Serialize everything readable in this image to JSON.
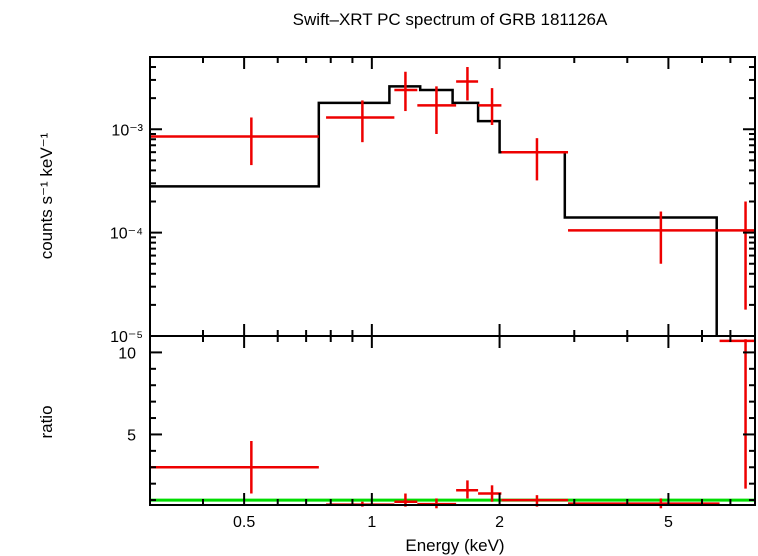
{
  "chart_data": [
    {
      "type": "line",
      "title": "Swift–XRT PC spectrum of GRB 181126A",
      "xlabel": "",
      "ylabel": "counts s⁻¹ keV⁻¹",
      "x_scale": "log",
      "y_scale": "log",
      "xlim": [
        0.3,
        8.0
      ],
      "ylim": [
        1e-05,
        0.005
      ],
      "y_tick_labels": [
        "10⁻³",
        "10⁻⁴",
        "10⁻⁵"
      ],
      "series": [
        {
          "kind": "step-model",
          "color": "#000000",
          "steps": [
            {
              "x0": 0.3,
              "x1": 0.75,
              "y": 0.00028
            },
            {
              "x0": 0.75,
              "x1": 1.1,
              "y": 0.0018
            },
            {
              "x0": 1.1,
              "x1": 1.3,
              "y": 0.0026
            },
            {
              "x0": 1.3,
              "x1": 1.55,
              "y": 0.0024
            },
            {
              "x0": 1.55,
              "x1": 1.78,
              "y": 0.0018
            },
            {
              "x0": 1.78,
              "x1": 2.0,
              "y": 0.0012
            },
            {
              "x0": 2.0,
              "x1": 2.85,
              "y": 0.0006
            },
            {
              "x0": 2.85,
              "x1": 6.5,
              "y": 0.00014
            }
          ],
          "drop_to_floor_at": 6.5
        },
        {
          "kind": "data",
          "color": "#ee0000",
          "points": [
            {
              "x": 0.52,
              "xlo": 0.3,
              "xhi": 0.75,
              "y": 0.00085,
              "ylo": 0.00045,
              "yhi": 0.0013
            },
            {
              "x": 0.95,
              "xlo": 0.78,
              "xhi": 1.13,
              "y": 0.0013,
              "ylo": 0.00075,
              "yhi": 0.0019
            },
            {
              "x": 1.2,
              "xlo": 1.13,
              "xhi": 1.28,
              "y": 0.0024,
              "ylo": 0.0015,
              "yhi": 0.0036
            },
            {
              "x": 1.42,
              "xlo": 1.28,
              "xhi": 1.58,
              "y": 0.0017,
              "ylo": 0.0009,
              "yhi": 0.0026
            },
            {
              "x": 1.68,
              "xlo": 1.58,
              "xhi": 1.78,
              "y": 0.0029,
              "ylo": 0.0019,
              "yhi": 0.004
            },
            {
              "x": 1.92,
              "xlo": 1.78,
              "xhi": 2.02,
              "y": 0.0017,
              "ylo": 0.0011,
              "yhi": 0.0025
            },
            {
              "x": 2.45,
              "xlo": 2.02,
              "xhi": 2.9,
              "y": 0.0006,
              "ylo": 0.00032,
              "yhi": 0.00082
            },
            {
              "x": 4.8,
              "xlo": 2.9,
              "xhi": 6.6,
              "y": 0.000105,
              "ylo": 5e-05,
              "yhi": 0.00016
            },
            {
              "x": 7.6,
              "xlo": 6.6,
              "xhi": 8.0,
              "y": 0.000105,
              "ylo": 1.8e-05,
              "yhi": 0.0002
            }
          ]
        }
      ]
    },
    {
      "type": "scatter",
      "title": "",
      "xlabel": "Energy (keV)",
      "ylabel": "ratio",
      "x_scale": "log",
      "xlim": [
        0.3,
        8.0
      ],
      "ylim": [
        0.7,
        11.0
      ],
      "x_ticks": [
        0.5,
        1,
        2,
        5
      ],
      "x_tick_labels": [
        "0.5",
        "1",
        "2",
        "5"
      ],
      "y_ticks": [
        5,
        10
      ],
      "y_tick_labels": [
        "5",
        "10"
      ],
      "reference_line": {
        "y": 1.0,
        "color": "#00dd00"
      },
      "series": [
        {
          "kind": "data",
          "color": "#ee0000",
          "points": [
            {
              "x": 0.52,
              "xlo": 0.3,
              "xhi": 0.75,
              "y": 3.0,
              "ylo": 1.4,
              "yhi": 4.6
            },
            {
              "x": 0.95,
              "xlo": 0.78,
              "xhi": 1.13,
              "y": 0.72,
              "ylo": 0.6,
              "yhi": 0.9
            },
            {
              "x": 1.2,
              "xlo": 1.13,
              "xhi": 1.28,
              "y": 0.9,
              "ylo": 0.6,
              "yhi": 1.4
            },
            {
              "x": 1.42,
              "xlo": 1.28,
              "xhi": 1.58,
              "y": 0.75,
              "ylo": 0.5,
              "yhi": 1.1
            },
            {
              "x": 1.68,
              "xlo": 1.58,
              "xhi": 1.78,
              "y": 1.6,
              "ylo": 1.1,
              "yhi": 2.2
            },
            {
              "x": 1.92,
              "xlo": 1.78,
              "xhi": 2.02,
              "y": 1.4,
              "ylo": 0.9,
              "yhi": 1.9
            },
            {
              "x": 2.45,
              "xlo": 2.02,
              "xhi": 2.9,
              "y": 1.0,
              "ylo": 0.6,
              "yhi": 1.3
            },
            {
              "x": 4.8,
              "xlo": 2.9,
              "xhi": 6.6,
              "y": 0.78,
              "ylo": 0.5,
              "yhi": 1.1
            },
            {
              "x": 7.6,
              "xlo": 6.6,
              "xhi": 8.0,
              "y": 10.7,
              "ylo": 1.7,
              "yhi": 10.8
            }
          ]
        }
      ]
    }
  ]
}
